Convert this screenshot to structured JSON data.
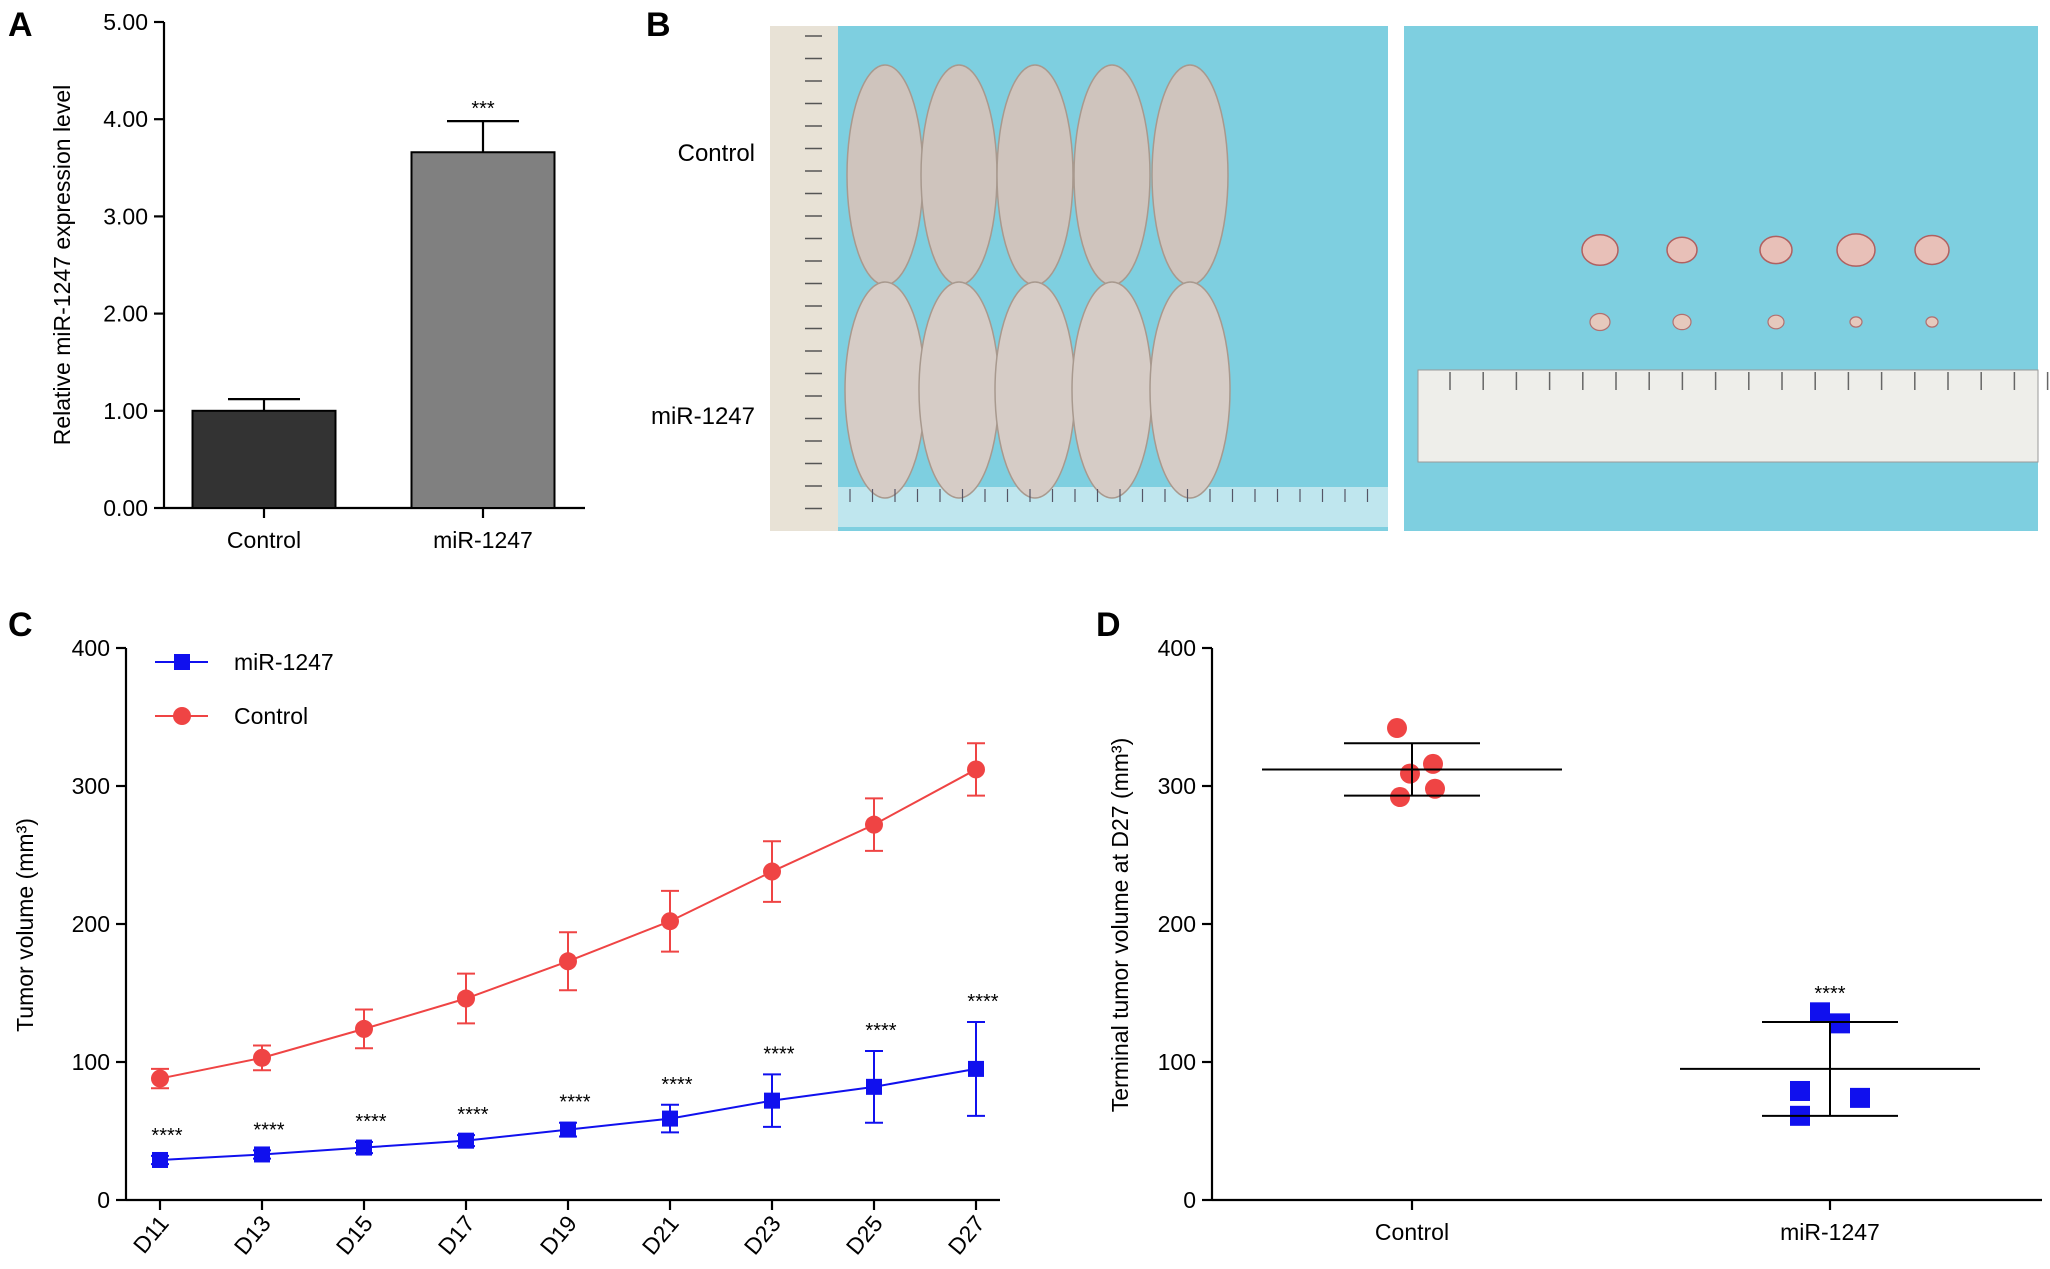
{
  "panels": {
    "a": "A",
    "b": "B",
    "c": "C",
    "d": "D"
  },
  "colors": {
    "control_dark": "#333333",
    "mir_gray": "#808080",
    "red": "#ef4444",
    "blue": "#1010ee",
    "photo_bg": "#7ecfe0"
  },
  "photo": {
    "control_label": "Control",
    "mir_label": "miR-1247"
  },
  "chart_data": [
    {
      "type": "bar",
      "panel": "A",
      "categories": [
        "Control",
        "miR-1247"
      ],
      "values": [
        1.0,
        3.66
      ],
      "errors": [
        0.12,
        0.32
      ],
      "significance": [
        "",
        "***"
      ],
      "ylabel": "Relative  miR-1247  expression level",
      "ylim": [
        0,
        5
      ],
      "yticks": [
        "0.00",
        "1.00",
        "2.00",
        "3.00",
        "4.00",
        "5.00"
      ]
    },
    {
      "type": "line",
      "panel": "C",
      "x": [
        "D11",
        "D13",
        "D15",
        "D17",
        "D19",
        "D21",
        "D23",
        "D25",
        "D27"
      ],
      "series": [
        {
          "name": "miR-1247",
          "values": [
            29,
            33,
            38,
            43,
            51,
            59,
            72,
            82,
            95
          ],
          "errors": [
            3,
            3,
            4,
            4,
            5,
            10,
            19,
            26,
            34
          ]
        },
        {
          "name": "Control",
          "values": [
            88,
            103,
            124,
            146,
            173,
            202,
            238,
            272,
            312
          ],
          "errors": [
            7,
            9,
            14,
            18,
            21,
            22,
            22,
            19,
            19
          ]
        }
      ],
      "significance": [
        "****",
        "****",
        "****",
        "****",
        "****",
        "****",
        "****",
        "****",
        "****"
      ],
      "ylabel": "Tumor volume (mm³)",
      "ylim": [
        0,
        400
      ],
      "yticks": [
        "0",
        "100",
        "200",
        "300",
        "400"
      ],
      "legend": "top-left"
    },
    {
      "type": "scatter",
      "panel": "D",
      "categories": [
        "Control",
        "miR-1247"
      ],
      "points": [
        [
          342,
          316,
          309,
          298,
          292
        ],
        [
          136,
          128,
          79,
          74,
          61
        ]
      ],
      "means": [
        312,
        95
      ],
      "sd": [
        19,
        34
      ],
      "significance": [
        "",
        "****"
      ],
      "ylabel": "Terminal tumor volume at D27 (mm³)",
      "ylim": [
        0,
        400
      ],
      "yticks": [
        "0",
        "100",
        "200",
        "300",
        "400"
      ]
    }
  ]
}
